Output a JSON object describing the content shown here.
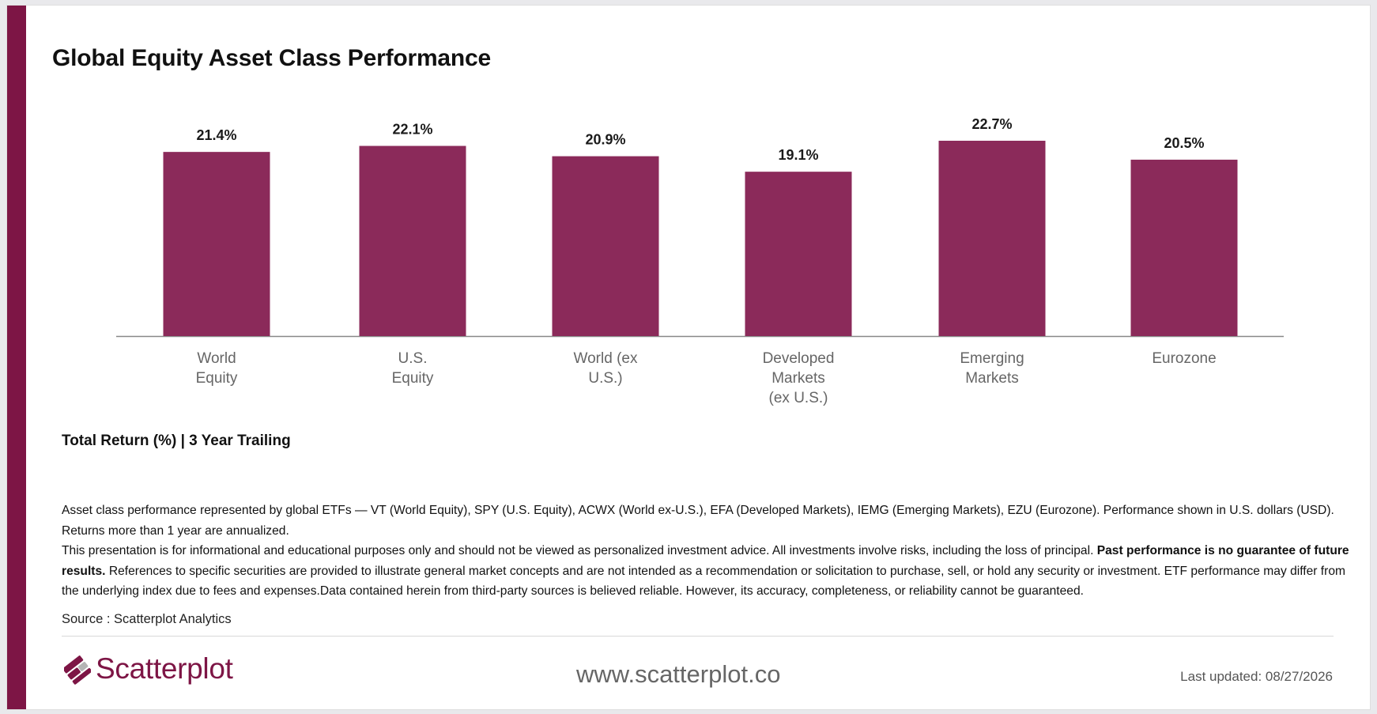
{
  "title": "Global Equity Asset Class Performance",
  "chart_data": {
    "type": "bar",
    "categories": [
      [
        "World",
        "Equity"
      ],
      [
        "U.S.",
        "Equity"
      ],
      [
        "World (ex",
        "U.S.)"
      ],
      [
        "Developed",
        "Markets",
        "(ex U.S.)"
      ],
      [
        "Emerging",
        "Markets"
      ],
      [
        "Eurozone"
      ]
    ],
    "values": [
      21.4,
      22.1,
      20.9,
      19.1,
      22.7,
      20.5
    ],
    "value_labels": [
      "21.4%",
      "22.1%",
      "20.9%",
      "19.1%",
      "22.7%",
      "20.5%"
    ],
    "bar_color": "#8b2a5a",
    "ylim": [
      0,
      22.7
    ],
    "grid": false,
    "legend": "none"
  },
  "subtitle": "Total Return (%) | 3 Year Trailing",
  "disclaimer": {
    "line1": "Asset class performance represented by global ETFs — VT (World Equity), SPY (U.S. Equity), ACWX (World ex-U.S.), EFA (Developed Markets), IEMG (Emerging Markets), EZU (Eurozone). Performance shown in U.S. dollars (USD).",
    "line2": "Returns more than 1 year are annualized.",
    "p3_start": "This presentation is for informational and educational purposes only and should not be viewed as personalized investment advice. All investments involve risks, including the loss of principal. ",
    "p3_bold": "Past performance is no guarantee of future results.",
    "p3_end": " References to specific securities are provided to illustrate general market concepts and are not intended as a recommendation or solicitation to purchase, sell, or hold any security or investment. ETF performance may differ from the underlying index due to fees and expenses.Data contained herein from third-party sources is believed reliable. However, its accuracy, completeness, or reliability cannot be guaranteed."
  },
  "source": "Source : Scatterplot Analytics",
  "footer": {
    "logo_text": "Scatterplot",
    "website": "www.scatterplot.co",
    "last_updated": "Last updated: 08/27/2026"
  },
  "colors": {
    "accent": "#7d1545",
    "bar": "#8b2a5a",
    "logo_light": "#b5b5b5"
  }
}
